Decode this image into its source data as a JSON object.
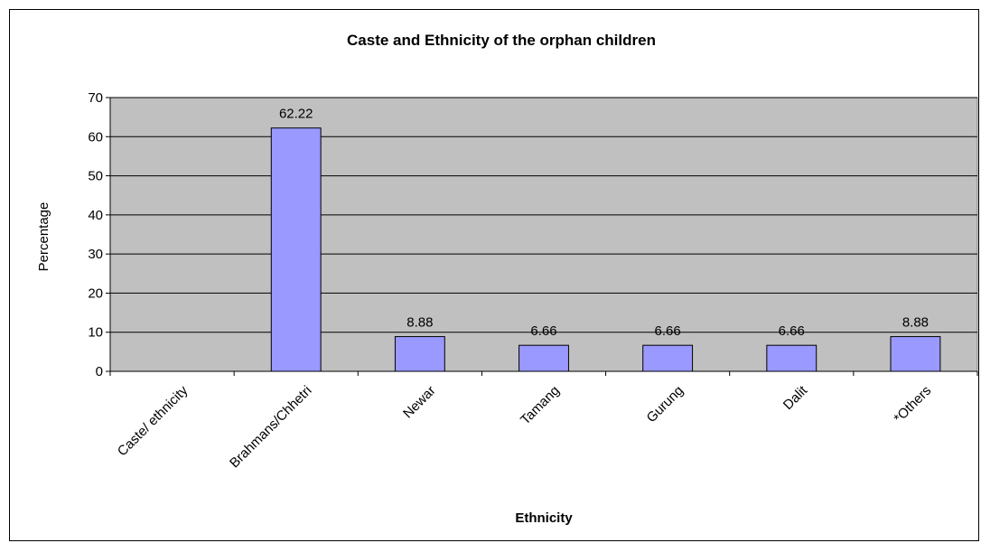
{
  "chart_data": {
    "type": "bar",
    "title": "Caste and Ethnicity of the orphan children",
    "xlabel": "Ethnicity",
    "ylabel": "Percentage",
    "categories": [
      "Caste/ ethnicity",
      "Brahmans/Chhetri",
      "Newar",
      "Tamang",
      "Gurung",
      "Dalit",
      "*Others"
    ],
    "values": [
      null,
      62.22,
      8.88,
      6.66,
      6.66,
      6.66,
      8.88
    ],
    "data_labels": [
      "",
      "62.22",
      "8.88",
      "6.66",
      "6.66",
      "6.66",
      "8.88"
    ],
    "ylim": [
      0,
      70
    ],
    "yticks": [
      0,
      10,
      20,
      30,
      40,
      50,
      60,
      70
    ],
    "grid": true,
    "legend": "none",
    "colors": {
      "bar_fill": "#9999ff",
      "plot_bg": "#c0c0c0",
      "gridline": "#000000",
      "bar_stroke": "#000000"
    }
  }
}
